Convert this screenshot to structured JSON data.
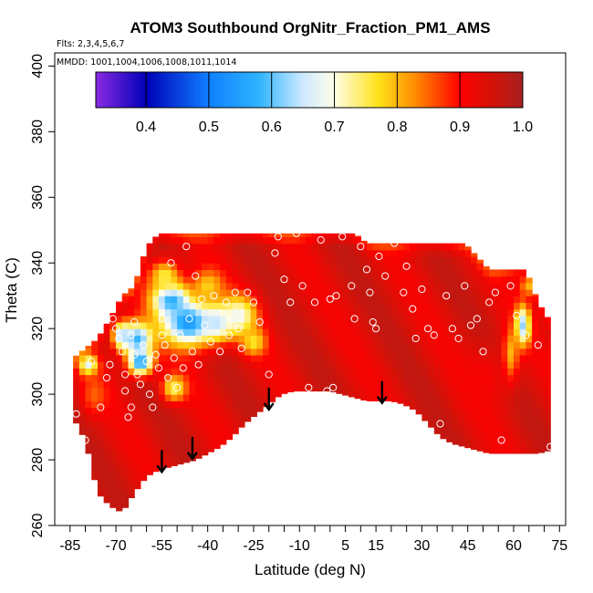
{
  "chart_data": {
    "type": "heatmap",
    "title": "ATOM3 Southbound OrgNitr_Fraction_PM1_AMS",
    "subtitle_flights": "Flts: 2,3,4,5,6,7",
    "subtitle_dates": "MMDD: 1001,1004,1006,1008,1011,1014",
    "xlabel": "Latitude (deg N)",
    "ylabel": "Theta (C)",
    "xlim": [
      -90,
      77
    ],
    "ylim": [
      260,
      404
    ],
    "xticks": [
      -85,
      -70,
      -55,
      -40,
      -25,
      -10,
      5,
      15,
      30,
      45,
      60,
      75
    ],
    "yticks": [
      260,
      280,
      300,
      320,
      340,
      360,
      380,
      400
    ],
    "colorbar": {
      "range": [
        0.32,
        1.0
      ],
      "ticks": [
        0.4,
        0.5,
        0.6,
        0.7,
        0.8,
        0.9,
        1.0
      ],
      "tick_labels": [
        "0.4",
        "0.5",
        "0.6",
        "0.7",
        "0.8",
        "0.9",
        "1.0"
      ],
      "stops": [
        {
          "v": 0.32,
          "color": "#8a2be2"
        },
        {
          "v": 0.4,
          "color": "#0000b8"
        },
        {
          "v": 0.5,
          "color": "#0f7fff"
        },
        {
          "v": 0.58,
          "color": "#2fb4ff"
        },
        {
          "v": 0.65,
          "color": "#cfe9ff"
        },
        {
          "v": 0.7,
          "color": "#fffde8"
        },
        {
          "v": 0.77,
          "color": "#ffe21a"
        },
        {
          "v": 0.83,
          "color": "#ff8a00"
        },
        {
          "v": 0.9,
          "color": "#ff0000"
        },
        {
          "v": 0.95,
          "color": "#d41208"
        },
        {
          "v": 1.0,
          "color": "#a52020"
        }
      ]
    },
    "field": {
      "lat": [
        -84,
        -80,
        -76,
        -72,
        -68,
        -64,
        -60,
        -56,
        -52,
        -48,
        -44,
        -40,
        -36,
        -32,
        -28,
        -24,
        -20,
        -16,
        -12,
        -8,
        -4,
        0,
        4,
        8,
        12,
        16,
        20,
        24,
        28,
        32,
        36,
        40,
        44,
        48,
        52,
        56,
        60,
        64,
        68,
        72
      ],
      "theta_top": [
        311,
        314,
        317,
        323,
        330,
        333,
        345,
        349,
        349,
        349,
        349,
        349,
        349,
        349,
        349,
        349,
        349,
        349,
        349,
        349,
        349,
        349,
        349,
        349,
        346,
        346,
        346,
        346,
        346,
        346,
        346,
        346,
        346,
        342,
        338,
        338,
        338,
        338,
        328,
        322
      ],
      "theta_bottom": [
        293,
        286,
        270,
        266,
        264,
        270,
        275,
        277,
        278,
        279,
        280,
        282,
        284,
        287,
        291,
        294,
        297,
        300,
        301,
        301,
        301,
        301,
        300,
        299,
        298,
        298,
        298,
        297,
        295,
        291,
        287,
        285,
        284,
        283,
        282,
        282,
        282,
        282,
        282,
        283
      ],
      "blobs": [
        {
          "lat": -46,
          "theta": 322,
          "value": 0.53,
          "sigma_lat": 9,
          "sigma_theta": 7
        },
        {
          "lat": -52,
          "theta": 329,
          "value": 0.55,
          "sigma_lat": 6,
          "sigma_theta": 5
        },
        {
          "lat": -37,
          "theta": 322,
          "value": 0.63,
          "sigma_lat": 5,
          "sigma_theta": 5
        },
        {
          "lat": -30,
          "theta": 324,
          "value": 0.68,
          "sigma_lat": 6,
          "sigma_theta": 6
        },
        {
          "lat": -63,
          "theta": 317,
          "value": 0.58,
          "sigma_lat": 5,
          "sigma_theta": 5
        },
        {
          "lat": -68,
          "theta": 318,
          "value": 0.62,
          "sigma_lat": 3,
          "sigma_theta": 4
        },
        {
          "lat": -62,
          "theta": 310,
          "value": 0.55,
          "sigma_lat": 4,
          "sigma_theta": 4
        },
        {
          "lat": -79,
          "theta": 309,
          "value": 0.66,
          "sigma_lat": 3,
          "sigma_theta": 3
        },
        {
          "lat": -51,
          "theta": 302,
          "value": 0.74,
          "sigma_lat": 4,
          "sigma_theta": 4
        },
        {
          "lat": -77,
          "theta": 300,
          "value": 0.85,
          "sigma_lat": 4,
          "sigma_theta": 6
        },
        {
          "lat": -54,
          "theta": 336,
          "value": 0.75,
          "sigma_lat": 5,
          "sigma_theta": 5
        },
        {
          "lat": -40,
          "theta": 333,
          "value": 0.78,
          "sigma_lat": 5,
          "sigma_theta": 5
        },
        {
          "lat": -25,
          "theta": 316,
          "value": 0.76,
          "sigma_lat": 4,
          "sigma_theta": 4
        },
        {
          "lat": 63,
          "theta": 321,
          "value": 0.62,
          "sigma_lat": 2.5,
          "sigma_theta": 6
        },
        {
          "lat": 59,
          "theta": 312,
          "value": 0.78,
          "sigma_lat": 2.5,
          "sigma_theta": 8
        },
        {
          "lat": 65,
          "theta": 333,
          "value": 0.8,
          "sigma_lat": 3,
          "sigma_theta": 3
        },
        {
          "lat": 50,
          "theta": 305,
          "value": 0.91,
          "sigma_lat": 8,
          "sigma_theta": 10
        }
      ]
    },
    "points": [
      [
        -83,
        294
      ],
      [
        -80,
        286
      ],
      [
        -78,
        310
      ],
      [
        -75,
        296
      ],
      [
        -73,
        305
      ],
      [
        -72,
        309
      ],
      [
        -71,
        323
      ],
      [
        -70,
        320
      ],
      [
        -69,
        317
      ],
      [
        -68,
        313
      ],
      [
        -67,
        306
      ],
      [
        -67,
        301
      ],
      [
        -66,
        293
      ],
      [
        -65,
        318
      ],
      [
        -65,
        296
      ],
      [
        -64,
        322
      ],
      [
        -64,
        312
      ],
      [
        -63,
        306
      ],
      [
        -62,
        303
      ],
      [
        -61,
        315
      ],
      [
        -60,
        310
      ],
      [
        -59,
        300
      ],
      [
        -58,
        296
      ],
      [
        -57,
        312
      ],
      [
        -56,
        308
      ],
      [
        -55,
        323
      ],
      [
        -55,
        318
      ],
      [
        -54,
        315
      ],
      [
        -53,
        305
      ],
      [
        -52,
        340
      ],
      [
        -51,
        311
      ],
      [
        -50,
        302
      ],
      [
        -49,
        318
      ],
      [
        -48,
        308
      ],
      [
        -47,
        345
      ],
      [
        -46,
        323
      ],
      [
        -45,
        313
      ],
      [
        -44,
        336
      ],
      [
        -43,
        309
      ],
      [
        -42,
        329
      ],
      [
        -41,
        321
      ],
      [
        -39,
        316
      ],
      [
        -38,
        330
      ],
      [
        -36,
        313
      ],
      [
        -34,
        328
      ],
      [
        -33,
        318
      ],
      [
        -31,
        331
      ],
      [
        -30,
        320
      ],
      [
        -29,
        314
      ],
      [
        -27,
        331
      ],
      [
        -25,
        328
      ],
      [
        -23,
        322
      ],
      [
        -20,
        306
      ],
      [
        -18,
        343
      ],
      [
        -17,
        348
      ],
      [
        -15,
        335
      ],
      [
        -13,
        328
      ],
      [
        -11,
        349
      ],
      [
        -9,
        333
      ],
      [
        -7,
        302
      ],
      [
        -5,
        328
      ],
      [
        -3,
        347
      ],
      [
        -1,
        301
      ],
      [
        0,
        329
      ],
      [
        1,
        302
      ],
      [
        2,
        330
      ],
      [
        4,
        348
      ],
      [
        7,
        333
      ],
      [
        8,
        323
      ],
      [
        10,
        345
      ],
      [
        12,
        338
      ],
      [
        13,
        331
      ],
      [
        14,
        322
      ],
      [
        15,
        320
      ],
      [
        16,
        342
      ],
      [
        18,
        336
      ],
      [
        21,
        346
      ],
      [
        24,
        331
      ],
      [
        25,
        339
      ],
      [
        27,
        326
      ],
      [
        28,
        317
      ],
      [
        30,
        332
      ],
      [
        32,
        320
      ],
      [
        34,
        318
      ],
      [
        36,
        291
      ],
      [
        38,
        330
      ],
      [
        40,
        320
      ],
      [
        42,
        317
      ],
      [
        44,
        333
      ],
      [
        46,
        321
      ],
      [
        48,
        323
      ],
      [
        50,
        313
      ],
      [
        52,
        328
      ],
      [
        54,
        331
      ],
      [
        56,
        286
      ],
      [
        59,
        333
      ],
      [
        61,
        324
      ],
      [
        64,
        318
      ],
      [
        68,
        315
      ],
      [
        72,
        284
      ]
    ],
    "arrows": [
      [
        -55,
        283
      ],
      [
        -45,
        287
      ],
      [
        -20,
        302
      ],
      [
        17,
        304
      ]
    ]
  }
}
